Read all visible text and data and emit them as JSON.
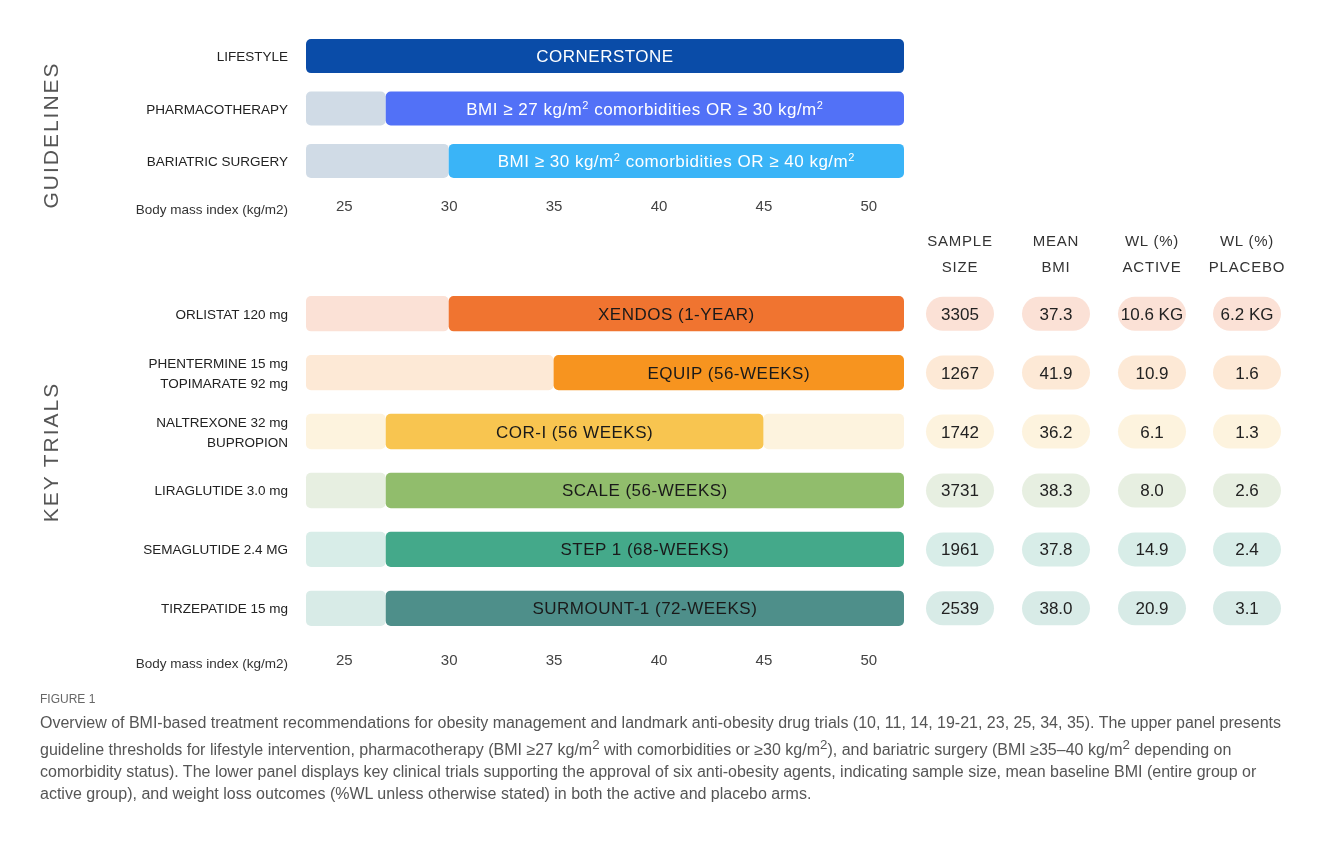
{
  "chart_data": [
    {
      "type": "bar",
      "orientation": "horizontal",
      "ylabel": "GUIDELINES",
      "xlabel": "Body mass index (kg/m2)",
      "categories": [
        "LIFESTYLE",
        "PHARMACOTHERAPY",
        "BARIATRIC SURGERY"
      ],
      "xlim": [
        23.2,
        51.7
      ],
      "xticks": [
        25,
        30,
        35,
        40,
        45,
        50
      ],
      "series": [
        {
          "colors": [
            null,
            "#d0dbe6",
            "#d0dbe6"
          ],
          "base": [
            null,
            23.2,
            23.2
          ],
          "values": [
            null,
            3.8,
            6.8
          ]
        },
        {
          "colors": [
            "#0a4ca8",
            "#5271f7",
            "#3ab4f7"
          ],
          "base": [
            23.2,
            27,
            30
          ],
          "values": [
            28.5,
            24.7,
            21.7
          ]
        }
      ],
      "annotations": [
        "CORNERSTONE",
        "BMI ≥ 27 kg/m$^{2}$ comorbidities OR ≥ 30 kg/m$^{2}$",
        "BMI ≥ 30 kg/m$^{2}$ comorbidities OR ≥ 40 kg/m$^{2}$"
      ]
    },
    {
      "type": "bar",
      "orientation": "horizontal",
      "ylabel": "KEY TRIALS",
      "xlabel": "Body mass index (kg/m2)",
      "categories": [
        "ORLISTAT 120 mg",
        "PHENTERMINE 15 mg\nTOPIMARATE 92 mg",
        "NALTREXONE 32 mg\nBUPROPION",
        "LIRAGLUTIDE 3.0 mg",
        "SEMAGLUTIDE 2.4 MG",
        "TIRZEPATIDE 15 mg"
      ],
      "xlim": [
        23.2,
        51.7
      ],
      "xticks": [
        25,
        30,
        35,
        40,
        45,
        50
      ],
      "series": [
        {
          "colors": [
            "#fbe1d6",
            "#fde9d6",
            "#fdf3de",
            "#e7efe1",
            "#d8ede8",
            "#d8ebe7"
          ],
          "base": [
            23.2,
            23.2,
            23.2,
            23.2,
            23.2,
            23.2
          ],
          "values": [
            6.8,
            11.8,
            3.8,
            3.8,
            3.8,
            3.8
          ]
        },
        {
          "colors": [
            null,
            null,
            "#fdf3de",
            null,
            null,
            null
          ],
          "base": [
            null,
            null,
            45,
            null,
            null,
            null
          ],
          "values": [
            null,
            null,
            6.7,
            null,
            null,
            null
          ]
        },
        {
          "colors": [
            "#f07430",
            "#f7941f",
            "#f8c550",
            "#91bd6c",
            "#44a98a",
            "#4e8f8a"
          ],
          "base": [
            30,
            35,
            27,
            27,
            27,
            27
          ],
          "values": [
            21.7,
            16.7,
            18,
            24.7,
            24.7,
            24.7
          ]
        }
      ],
      "annotations": [
        "XENDOS (1-YEAR)",
        "EQUIP (56-WEEKS)",
        "COR-I (56 WEEKS)",
        "SCALE (56-WEEKS)",
        "STEP 1 (68-WEEKS)",
        "SURMOUNT-1 (72-WEEKS)",
        "FIGURE 1",
        "Overview of BMI-based treatment recommendations for obesity management and landmark anti-obesity drug trials (10, 11, 14, 19-21, 23, 25, 34, 35). The upper panel presents guideline thresholds for lifestyle intervention, pharmacotherapy (BMI ≥27 kg/m$^{2}$ with comorbidities or ≥30 kg/m$^{2}$), and bariatric surgery (BMI ≥35–40 kg/m$^{2}$ depending on comorbidity status). The lower panel displays key clinical trials supporting the approval of six anti-obesity agents, indicating sample size, mean baseline BMI (entire group or active group), and weight loss outcomes (%WL unless otherwise stated) in both the active and placebo arms."
      ]
    },
    {
      "type": "other",
      "categories": [
        "SAMPLE\nSIZE",
        "MEAN\nBMI",
        "WL (%)\nACTIVE",
        "WL (%)\nPLACEBO"
      ],
      "colors": [
        "#fbe1d6",
        "#fde9d6",
        "#fdf3de",
        "#e7efe1",
        "#d8ede8",
        "#d8ebe7"
      ],
      "cell_labels": [
        [
          "3305",
          "37.3",
          "10.6 KG",
          "6.2 KG"
        ],
        [
          "1267",
          "41.9",
          "10.9",
          "1.6"
        ],
        [
          "1742",
          "36.2",
          "6.1",
          "1.3"
        ],
        [
          "3731",
          "38.3",
          "8.0",
          "2.6"
        ],
        [
          "1961",
          "37.8",
          "14.9",
          "2.4"
        ],
        [
          "2539",
          "38.0",
          "20.9",
          "3.1"
        ]
      ]
    }
  ]
}
